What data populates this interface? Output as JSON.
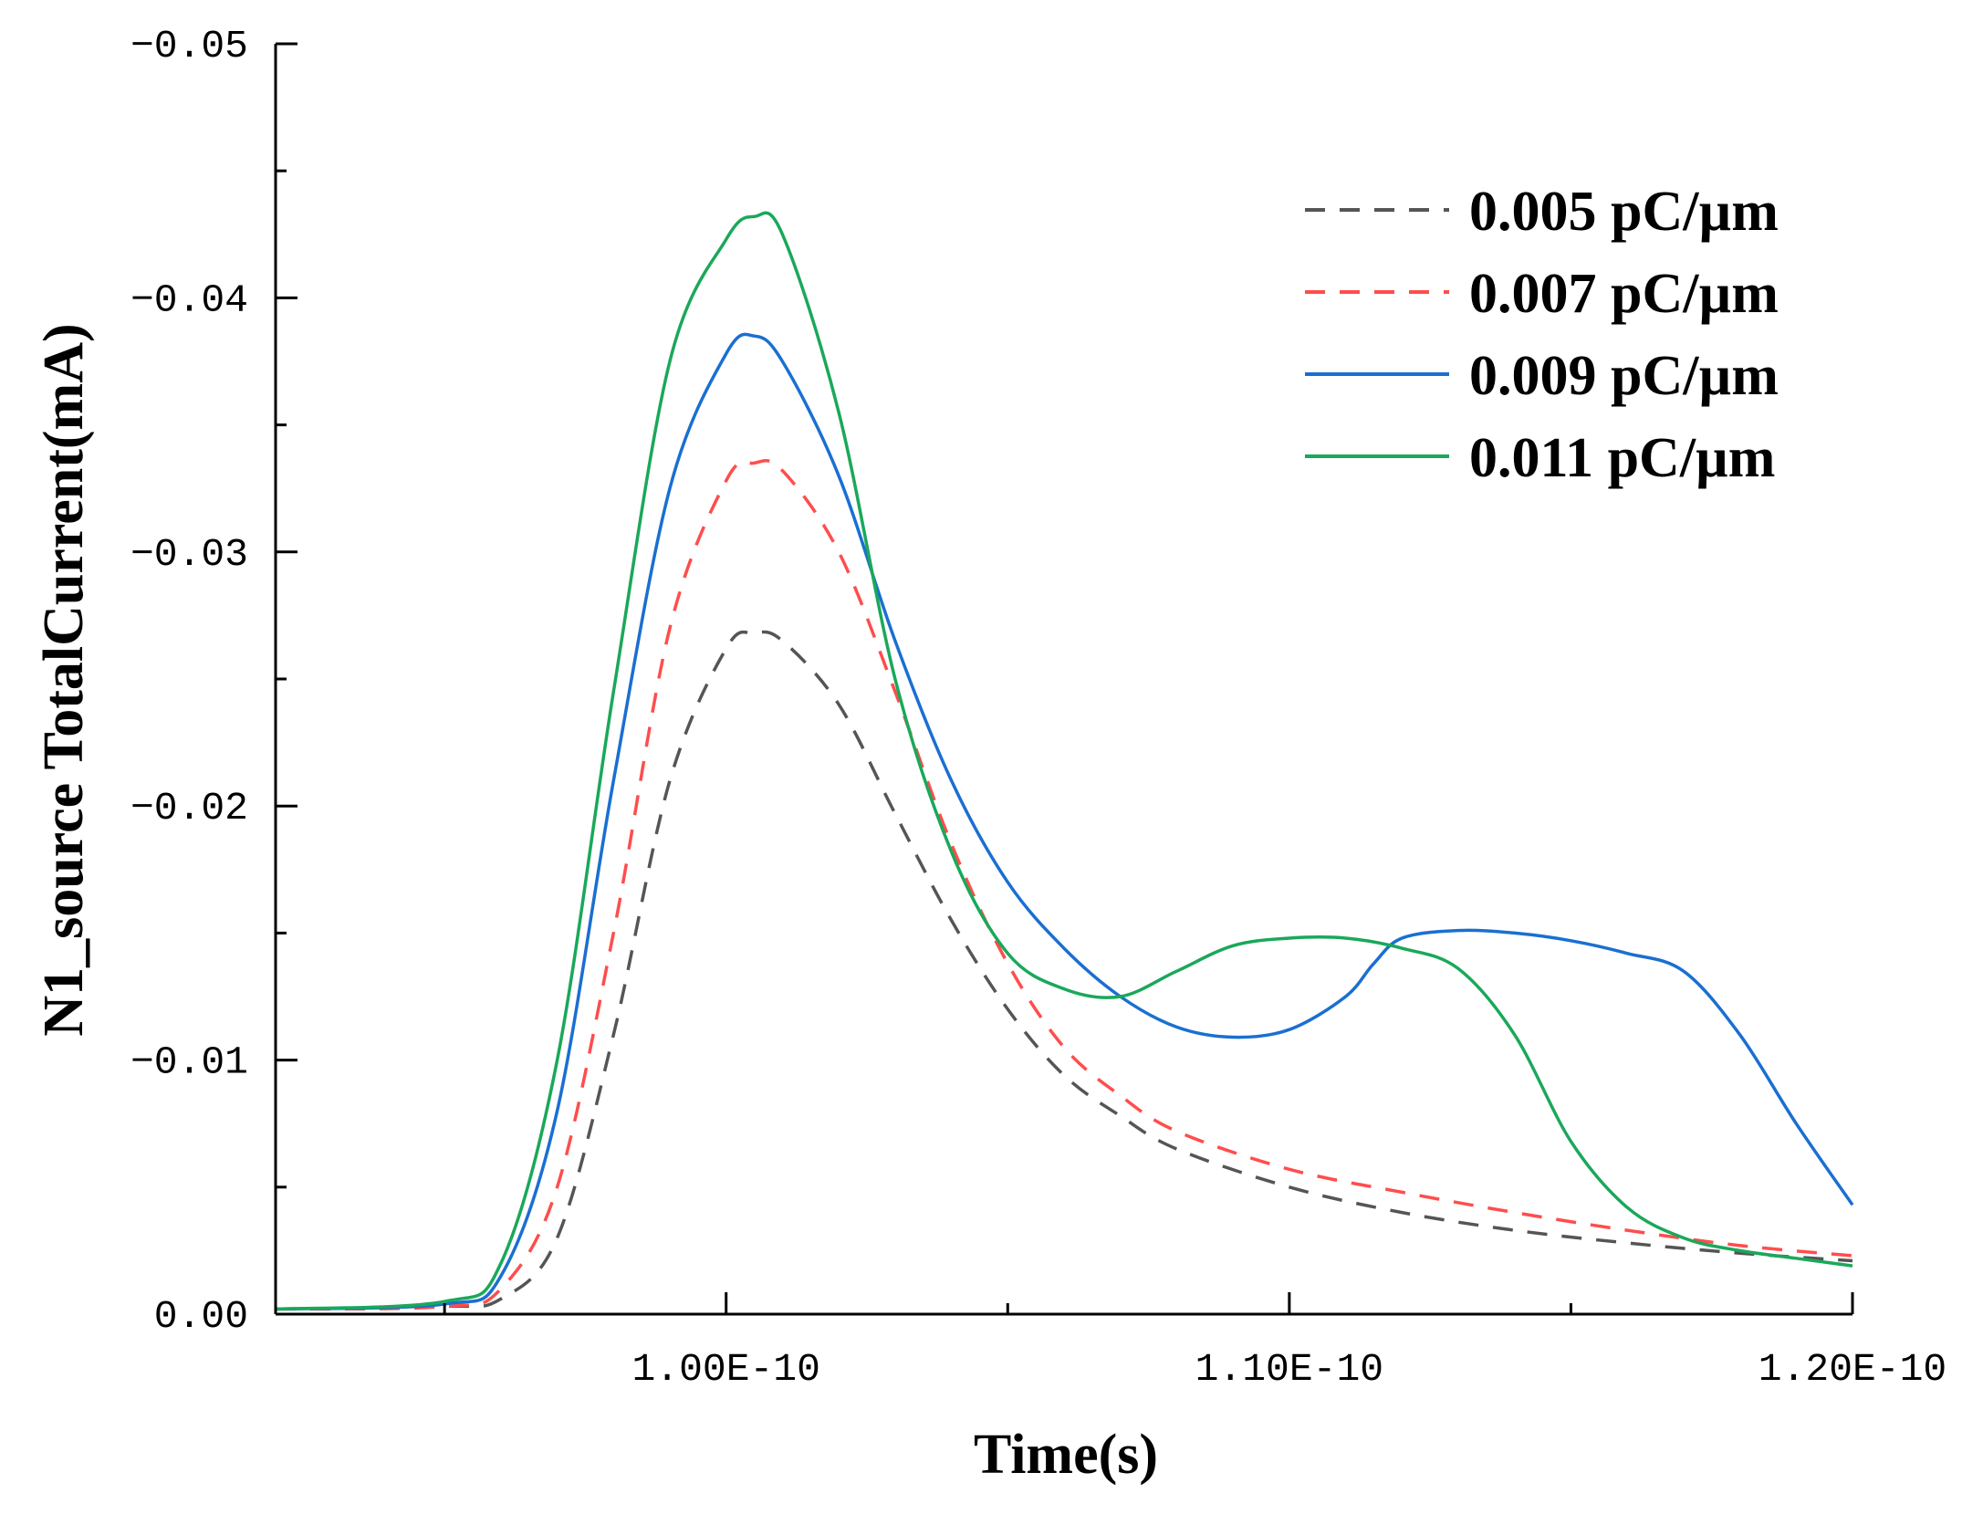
{
  "chart_data": {
    "type": "line",
    "title": "",
    "xlabel": "Time(s)",
    "ylabel": "N1_source TotalCurrent(mA)",
    "xlim": [
      9.2e-11,
      1.2e-10
    ],
    "ylim": [
      0.0,
      -0.05
    ],
    "y_inverted": true,
    "xticks": [
      {
        "value": 1e-10,
        "label": "1.00E-10"
      },
      {
        "value": 1.1e-10,
        "label": "1.10E-10"
      },
      {
        "value": 1.2e-10,
        "label": "1.20E-10"
      }
    ],
    "x_minor_ticks": [
      9.5e-11,
      1.05e-10,
      1.15e-10
    ],
    "yticks": [
      {
        "value": 0.0,
        "label": "0.00"
      },
      {
        "value": -0.01,
        "label": "−0.01"
      },
      {
        "value": -0.02,
        "label": "−0.02"
      },
      {
        "value": -0.03,
        "label": "−0.03"
      },
      {
        "value": -0.04,
        "label": "−0.04"
      },
      {
        "value": -0.05,
        "label": "−0.05"
      }
    ],
    "y_minor_ticks": [
      -0.005,
      -0.015,
      -0.025,
      -0.035,
      -0.045
    ],
    "grid": false,
    "legend_position": "top-right",
    "series": [
      {
        "name": "0.005 pC/µm",
        "color": "#555555",
        "dash": true,
        "x": [
          9.2e-11,
          9.5e-11,
          9.6e-11,
          9.7e-11,
          9.8e-11,
          9.9e-11,
          1e-10,
          1.005e-10,
          1.01e-10,
          1.02e-10,
          1.03e-10,
          1.04e-10,
          1.05e-10,
          1.06e-10,
          1.07e-10,
          1.08e-10,
          1.1e-10,
          1.12e-10,
          1.14e-10,
          1.16e-10,
          1.18e-10,
          1.2e-10
        ],
        "values": [
          -0.0002,
          -0.0003,
          -0.0006,
          -0.003,
          -0.011,
          -0.021,
          -0.0262,
          -0.0268,
          -0.0265,
          -0.024,
          -0.0197,
          -0.0155,
          -0.012,
          -0.0094,
          -0.0078,
          -0.0065,
          -0.005,
          -0.004,
          -0.0033,
          -0.0028,
          -0.0024,
          -0.0021
        ]
      },
      {
        "name": "0.007 pC/µm",
        "color": "#ff4d4d",
        "dash": true,
        "x": [
          9.2e-11,
          9.5e-11,
          9.6e-11,
          9.7e-11,
          9.8e-11,
          9.9e-11,
          1e-10,
          1.005e-10,
          1.01e-10,
          1.02e-10,
          1.03e-10,
          1.04e-10,
          1.05e-10,
          1.06e-10,
          1.07e-10,
          1.08e-10,
          1.1e-10,
          1.12e-10,
          1.14e-10,
          1.16e-10,
          1.18e-10,
          1.2e-10
        ],
        "values": [
          -0.0002,
          -0.0003,
          -0.001,
          -0.005,
          -0.015,
          -0.027,
          -0.0328,
          -0.0335,
          -0.0332,
          -0.03,
          -0.0245,
          -0.0185,
          -0.0138,
          -0.0105,
          -0.0086,
          -0.0072,
          -0.0057,
          -0.0048,
          -0.004,
          -0.0033,
          -0.0027,
          -0.0023
        ]
      },
      {
        "name": "0.009 pC/µm",
        "color": "#1a6fd1",
        "dash": false,
        "x": [
          9.2e-11,
          9.5e-11,
          9.6e-11,
          9.7e-11,
          9.8e-11,
          9.9e-11,
          1e-10,
          1.005e-10,
          1.01e-10,
          1.02e-10,
          1.03e-10,
          1.04e-10,
          1.05e-10,
          1.06e-10,
          1.07e-10,
          1.08e-10,
          1.09e-10,
          1.1e-10,
          1.11e-10,
          1.115e-10,
          1.12e-10,
          1.13e-10,
          1.14e-10,
          1.15e-10,
          1.16e-10,
          1.17e-10,
          1.18e-10,
          1.19e-10,
          1.2e-10
        ],
        "values": [
          -0.0002,
          -0.0004,
          -0.0015,
          -0.008,
          -0.021,
          -0.0325,
          -0.0378,
          -0.0385,
          -0.0375,
          -0.033,
          -0.0265,
          -0.021,
          -0.017,
          -0.0144,
          -0.0125,
          -0.0113,
          -0.0109,
          -0.0112,
          -0.0125,
          -0.0138,
          -0.0148,
          -0.0151,
          -0.015,
          -0.0147,
          -0.0142,
          -0.0135,
          -0.011,
          -0.0075,
          -0.0043
        ]
      },
      {
        "name": "0.011 pC/µm",
        "color": "#1aa85a",
        "dash": false,
        "x": [
          9.2e-11,
          9.5e-11,
          9.6e-11,
          9.7e-11,
          9.8e-11,
          9.9e-11,
          1e-10,
          1.005e-10,
          1.01e-10,
          1.02e-10,
          1.03e-10,
          1.04e-10,
          1.05e-10,
          1.06e-10,
          1.07e-10,
          1.08e-10,
          1.09e-10,
          1.1e-10,
          1.11e-10,
          1.12e-10,
          1.13e-10,
          1.14e-10,
          1.15e-10,
          1.16e-10,
          1.17e-10,
          1.18e-10,
          1.19e-10,
          1.2e-10
        ],
        "values": [
          -0.0002,
          -0.0005,
          -0.002,
          -0.01,
          -0.0245,
          -0.0375,
          -0.0423,
          -0.0432,
          -0.0425,
          -0.0355,
          -0.025,
          -0.0182,
          -0.0142,
          -0.0128,
          -0.0125,
          -0.0135,
          -0.0145,
          -0.0148,
          -0.0148,
          -0.0144,
          -0.0136,
          -0.011,
          -0.0068,
          -0.0042,
          -0.003,
          -0.0025,
          -0.0022,
          -0.0019
        ]
      }
    ]
  }
}
